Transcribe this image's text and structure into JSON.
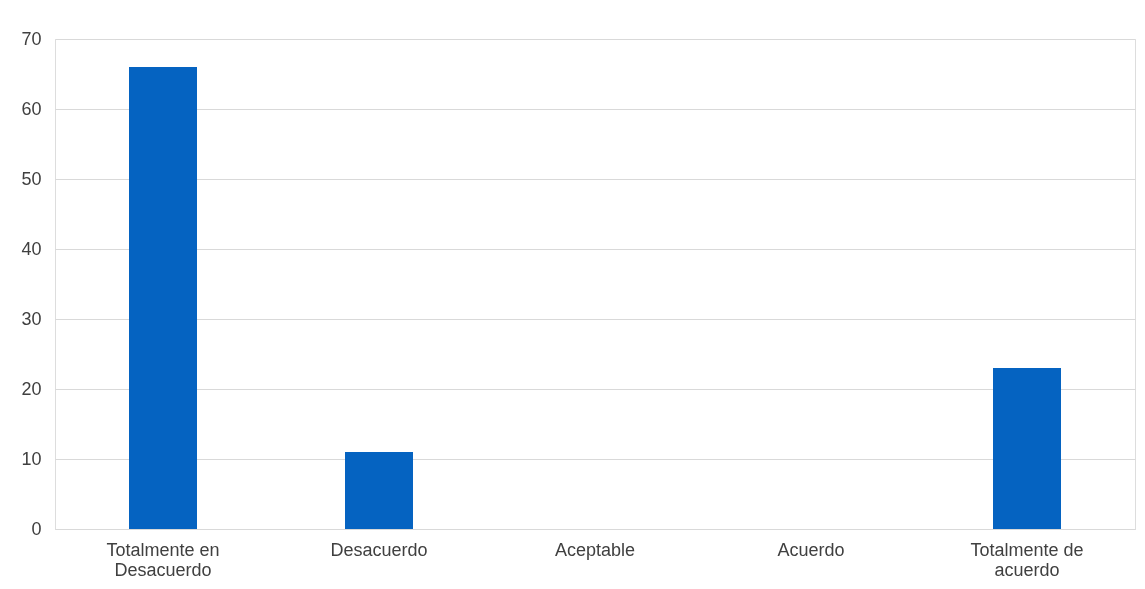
{
  "chart_data": {
    "type": "bar",
    "categories": [
      "Totalmente en Desacuerdo",
      "Desacuerdo",
      "Aceptable",
      "Acuerdo",
      "Totalmente de acuerdo"
    ],
    "values": [
      66,
      11,
      0,
      0,
      23
    ],
    "color": "#0563c1",
    "ylim": [
      0,
      70
    ],
    "yticks": [
      0,
      10,
      20,
      30,
      40,
      50,
      60,
      70
    ],
    "grid": "y"
  }
}
